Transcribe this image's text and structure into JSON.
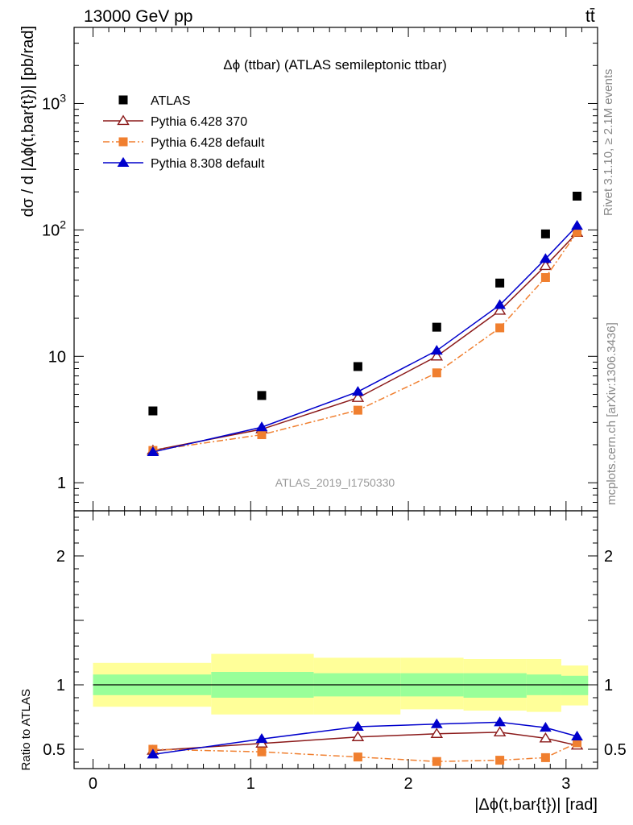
{
  "header": {
    "left": "13000 GeV pp",
    "right": "tt̄"
  },
  "side_labels": {
    "rivet": "Rivet 3.1.10, ≥ 2.1M events",
    "mcplots": "mcplots.cern.ch [arXiv:1306.3436]"
  },
  "watermark": "ATLAS_2019_I1750330",
  "chart_data": [
    {
      "type": "scatter",
      "panel": "main",
      "title": "Δϕ (ttbar) (ATLAS semileptonic ttbar)",
      "ylabel": "dσ / d |Δϕ(t,bar{t})| [pb/rad]",
      "xlabel": "",
      "yscale": "log",
      "xlim": [
        -0.12,
        3.2
      ],
      "ylim": [
        0.6,
        4000
      ],
      "y_ticks": [
        {
          "value": 1,
          "label": "1"
        },
        {
          "value": 10,
          "label": "10"
        },
        {
          "value": 100,
          "label": "10²"
        },
        {
          "value": 1000,
          "label": "10³"
        }
      ],
      "legend_position": "top-left",
      "x": [
        0.38,
        1.07,
        1.68,
        2.18,
        2.58,
        2.87,
        3.07
      ],
      "series": [
        {
          "name": "ATLAS",
          "color": "#000000",
          "marker": "square",
          "line": "none",
          "values": [
            3.7,
            4.9,
            8.3,
            17,
            38,
            93,
            185
          ]
        },
        {
          "name": "Pythia 6.428 370",
          "color": "#8b1a1a",
          "marker": "open-triangle",
          "line": "solid",
          "values": [
            1.8,
            2.65,
            4.7,
            10,
            23,
            52,
            95
          ]
        },
        {
          "name": "Pythia 6.428 default",
          "color": "#f07f2f",
          "marker": "square",
          "line": "dashdot",
          "values": [
            1.8,
            2.4,
            3.75,
            7.4,
            16.8,
            42,
            96
          ]
        },
        {
          "name": "Pythia 8.308 default",
          "color": "#0000cc",
          "marker": "filled-triangle",
          "line": "solid",
          "values": [
            1.75,
            2.75,
            5.25,
            11.1,
            25.5,
            59,
            108
          ]
        }
      ]
    },
    {
      "type": "line",
      "panel": "ratio",
      "ylabel": "Ratio to ATLAS",
      "xlabel": "|Δϕ(t,bar{t})| [rad]",
      "xlim": [
        -0.12,
        3.2
      ],
      "ylim": [
        0.35,
        2.35
      ],
      "x_ticks": [
        "0",
        "1",
        "2",
        "3"
      ],
      "y_ticks": [
        {
          "value": 0.5,
          "label": "0.5"
        },
        {
          "value": 1,
          "label": "1"
        },
        {
          "value": 2,
          "label": "2"
        }
      ],
      "reference_line": 1,
      "x": [
        0.38,
        1.07,
        1.68,
        2.18,
        2.58,
        2.87,
        3.07
      ],
      "bands": {
        "edges": [
          0,
          0.75,
          1.4,
          1.95,
          2.35,
          2.75,
          2.97,
          3.14
        ],
        "inner_color": "#99ff99",
        "outer_color": "#ffff99",
        "inner": [
          [
            0.92,
            1.08
          ],
          [
            0.9,
            1.1
          ],
          [
            0.91,
            1.09
          ],
          [
            0.91,
            1.09
          ],
          [
            0.9,
            1.09
          ],
          [
            0.92,
            1.08
          ],
          [
            0.92,
            1.07
          ]
        ],
        "outer": [
          [
            0.83,
            1.17
          ],
          [
            0.77,
            1.24
          ],
          [
            0.77,
            1.21
          ],
          [
            0.81,
            1.21
          ],
          [
            0.8,
            1.2
          ],
          [
            0.79,
            1.2
          ],
          [
            0.84,
            1.15
          ]
        ]
      },
      "series": [
        {
          "name": "Pythia 6.428 370",
          "color": "#8b1a1a",
          "marker": "open-triangle",
          "line": "solid",
          "values": [
            0.49,
            0.545,
            0.595,
            0.62,
            0.632,
            0.585,
            0.53
          ]
        },
        {
          "name": "Pythia 6.428 default",
          "color": "#f07f2f",
          "marker": "square",
          "line": "dashdot",
          "values": [
            0.5,
            0.48,
            0.44,
            0.405,
            0.415,
            0.435,
            0.55
          ]
        },
        {
          "name": "Pythia 8.308 default",
          "color": "#0000cc",
          "marker": "filled-triangle",
          "line": "solid",
          "values": [
            0.46,
            0.58,
            0.675,
            0.695,
            0.71,
            0.668,
            0.6
          ]
        }
      ]
    }
  ]
}
